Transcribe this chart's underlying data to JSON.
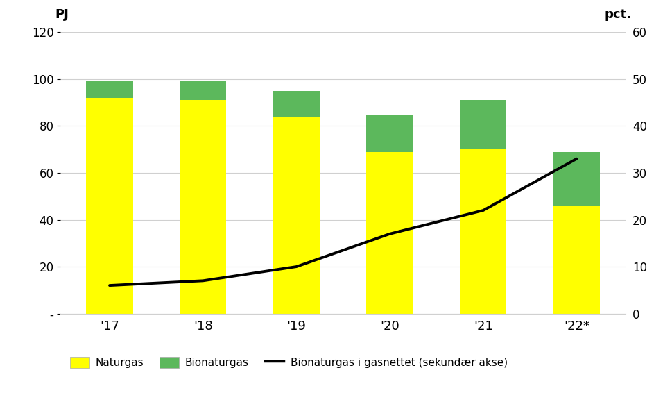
{
  "categories": [
    "'17",
    "'18",
    "'19",
    "'20",
    "'21",
    "'22*"
  ],
  "naturgas": [
    92,
    91,
    84,
    69,
    70,
    46
  ],
  "bionaturgas": [
    7,
    8,
    11,
    16,
    21,
    23
  ],
  "line_pct": [
    6,
    7,
    10,
    17,
    22,
    33
  ],
  "bar_color_naturgas": "#ffff00",
  "bar_color_bionaturgas": "#5cb85c",
  "line_color": "#000000",
  "label_left": "PJ",
  "label_right": "pct.",
  "ylim_left": [
    0,
    120
  ],
  "ylim_right": [
    0,
    60
  ],
  "yticks_left": [
    0,
    20,
    40,
    60,
    80,
    100,
    120
  ],
  "ytick_labels_left": [
    "-",
    "20",
    "40",
    "60",
    "80",
    "100",
    "120"
  ],
  "yticks_right": [
    0,
    10,
    20,
    30,
    40,
    50,
    60
  ],
  "legend_naturgas": "Naturgas",
  "legend_bionaturgas": "Bionaturgas",
  "legend_line": "Bionaturgas i gasnettet (sekundær akse)",
  "background_color": "#ffffff",
  "grid_color": "#d0d0d0"
}
